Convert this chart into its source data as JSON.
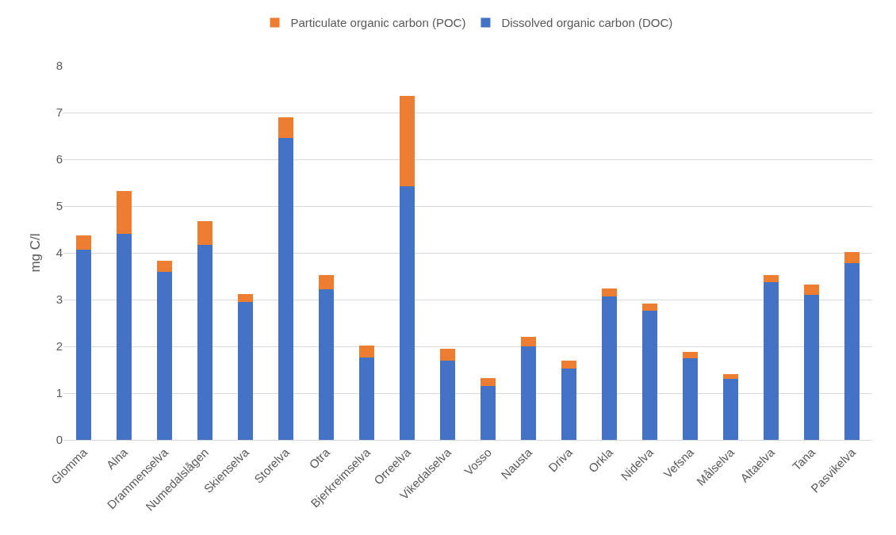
{
  "chart_data": {
    "type": "bar",
    "stacked": true,
    "ylabel": "mg C/l",
    "categories": [
      "Glomma",
      "Alna",
      "Drammenselva",
      "Numedalslågen",
      "Skienselva",
      "Storelva",
      "Otra",
      "Bjerkreimselva",
      "Orreelva",
      "Vikedalselva",
      "Vosso",
      "Nausta",
      "Driva",
      "Orkla",
      "Nidelva",
      "Vefsna",
      "Målselva",
      "Altaelva",
      "Tana",
      "Pasvikelva"
    ],
    "series": [
      {
        "name": "Dissolved organic carbon (DOC)",
        "color": "#4472c4",
        "values": [
          4.07,
          4.41,
          3.6,
          4.17,
          2.95,
          6.45,
          3.22,
          1.77,
          5.43,
          1.7,
          1.16,
          2.0,
          1.52,
          3.06,
          2.76,
          1.75,
          1.31,
          3.37,
          3.1,
          3.78
        ]
      },
      {
        "name": "Particulate organic carbon (POC)",
        "color": "#ed7d31",
        "values": [
          0.31,
          0.92,
          0.23,
          0.5,
          0.17,
          0.45,
          0.31,
          0.25,
          1.93,
          0.25,
          0.17,
          0.21,
          0.17,
          0.18,
          0.15,
          0.13,
          0.1,
          0.16,
          0.23,
          0.24
        ]
      }
    ],
    "ylim": [
      0,
      8
    ],
    "yticks": [
      0,
      1,
      2,
      3,
      4,
      5,
      6,
      7,
      8
    ],
    "grid": "y",
    "legend": "top"
  }
}
